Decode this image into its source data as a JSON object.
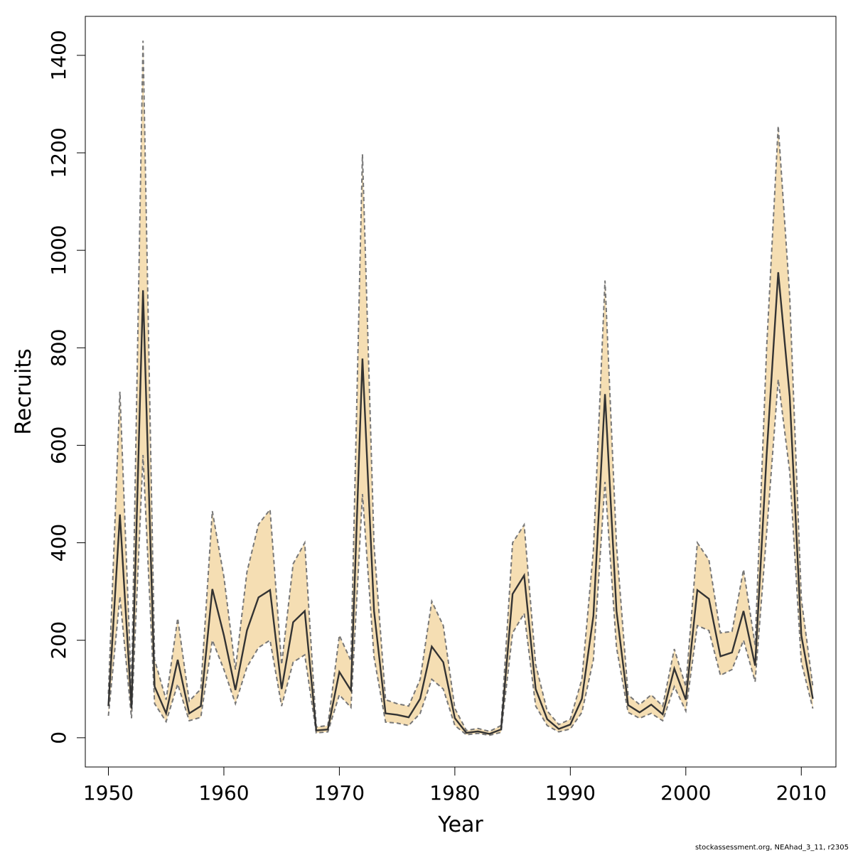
{
  "chart_data": {
    "type": "line",
    "title": "",
    "xlabel": "Year",
    "ylabel": "Recruits",
    "xlim": [
      1948,
      2013
    ],
    "ylim": [
      -60,
      1480
    ],
    "x_ticks": [
      "1950",
      "1960",
      "1970",
      "1980",
      "1990",
      "2000",
      "2010"
    ],
    "y_ticks": [
      "0",
      "200",
      "400",
      "600",
      "800",
      "1000",
      "1200",
      "1400"
    ],
    "colors": {
      "band": "#f5deb3",
      "line": "#333333",
      "bounds": "#777777"
    },
    "x": [
      1950,
      1951,
      1952,
      1953,
      1954,
      1955,
      1956,
      1957,
      1958,
      1959,
      1960,
      1961,
      1962,
      1963,
      1964,
      1965,
      1966,
      1967,
      1968,
      1969,
      1970,
      1971,
      1972,
      1973,
      1974,
      1975,
      1976,
      1977,
      1978,
      1979,
      1980,
      1981,
      1982,
      1983,
      1984,
      1985,
      1986,
      1987,
      1988,
      1989,
      1990,
      1991,
      1992,
      1993,
      1994,
      1995,
      1996,
      1997,
      1998,
      1999,
      2000,
      2001,
      2002,
      2003,
      2004,
      2005,
      2006,
      2007,
      2008,
      2009,
      2010,
      2011
    ],
    "series": [
      {
        "role": "estimate",
        "values": [
          65,
          458,
          60,
          918,
          105,
          50,
          160,
          50,
          65,
          305,
          210,
          98,
          220,
          288,
          303,
          100,
          237,
          260,
          15,
          17,
          135,
          97,
          778,
          260,
          50,
          47,
          42,
          80,
          187,
          155,
          40,
          10,
          13,
          8,
          17,
          295,
          333,
          100,
          38,
          18,
          27,
          80,
          250,
          705,
          260,
          67,
          52,
          68,
          48,
          142,
          78,
          303,
          285,
          167,
          175,
          260,
          148,
          580,
          955,
          700,
          210,
          80
        ]
      },
      {
        "role": "lower",
        "values": [
          45,
          290,
          40,
          580,
          70,
          33,
          110,
          35,
          42,
          200,
          140,
          70,
          145,
          185,
          200,
          65,
          155,
          170,
          10,
          12,
          88,
          62,
          500,
          165,
          32,
          30,
          25,
          50,
          120,
          100,
          25,
          6,
          9,
          5,
          11,
          215,
          255,
          65,
          25,
          12,
          18,
          52,
          160,
          525,
          185,
          52,
          40,
          50,
          35,
          105,
          55,
          230,
          220,
          128,
          140,
          200,
          115,
          420,
          735,
          545,
          155,
          60
        ]
      },
      {
        "role": "upper",
        "values": [
          90,
          710,
          95,
          1430,
          160,
          78,
          245,
          75,
          100,
          465,
          330,
          140,
          340,
          438,
          468,
          150,
          357,
          400,
          22,
          25,
          210,
          158,
          1197,
          395,
          78,
          70,
          65,
          120,
          280,
          230,
          60,
          15,
          19,
          13,
          25,
          400,
          437,
          150,
          55,
          27,
          38,
          120,
          385,
          938,
          395,
          88,
          68,
          88,
          65,
          182,
          105,
          400,
          365,
          215,
          218,
          345,
          190,
          800,
          1255,
          905,
          285,
          105
        ]
      }
    ]
  },
  "footnote": "stockassessment.org, NEAhad_3_11, r2305"
}
